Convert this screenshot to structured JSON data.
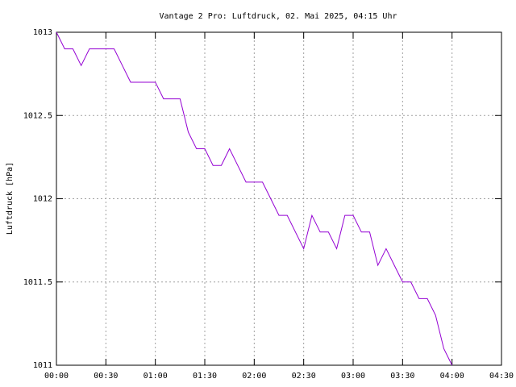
{
  "chart_data": {
    "type": "line",
    "title": "Vantage 2 Pro: Luftdruck, 02. Mai 2025, 04:15 Uhr",
    "y_label": "Luftdruck [hPa]",
    "x": [
      0,
      5,
      10,
      15,
      20,
      25,
      30,
      35,
      40,
      45,
      50,
      55,
      60,
      65,
      70,
      75,
      80,
      85,
      90,
      95,
      100,
      105,
      110,
      115,
      120,
      125,
      130,
      135,
      140,
      145,
      150,
      155,
      160,
      165,
      170,
      175,
      180,
      185,
      190,
      195,
      200,
      205,
      210,
      215,
      220,
      225,
      230,
      235,
      240
    ],
    "series": [
      {
        "color": "#9400d3",
        "values": [
          1013,
          1012.9,
          1012.9,
          1012.8,
          1012.9,
          1012.9,
          1012.9,
          1012.9,
          1012.8,
          1012.7,
          1012.7,
          1012.7,
          1012.7,
          1012.6,
          1012.6,
          1012.6,
          1012.4,
          1012.3,
          1012.3,
          1012.2,
          1012.2,
          1012.3,
          1012.2,
          1012.1,
          1012.1,
          1012.1,
          1012.0,
          1011.9,
          1011.9,
          1011.8,
          1011.7,
          1011.9,
          1011.8,
          1011.8,
          1011.7,
          1011.9,
          1011.9,
          1011.8,
          1011.8,
          1011.6,
          1011.7,
          1011.6,
          1011.5,
          1011.5,
          1011.4,
          1011.4,
          1011.3,
          1011.1,
          1011.0
        ]
      }
    ],
    "xlim": [
      0,
      270
    ],
    "xticks": [
      {
        "value": 0,
        "label": "00:00"
      },
      {
        "value": 30,
        "label": "00:30"
      },
      {
        "value": 60,
        "label": "01:00"
      },
      {
        "value": 90,
        "label": "01:30"
      },
      {
        "value": 120,
        "label": "02:00"
      },
      {
        "value": 150,
        "label": "02:30"
      },
      {
        "value": 180,
        "label": "03:00"
      },
      {
        "value": 210,
        "label": "03:30"
      },
      {
        "value": 240,
        "label": "04:00"
      },
      {
        "value": 270,
        "label": "04:30"
      }
    ],
    "ylim": [
      1011,
      1013
    ],
    "yticks": [
      1011,
      1011.5,
      1012,
      1012.5,
      1013
    ],
    "grid": true
  }
}
